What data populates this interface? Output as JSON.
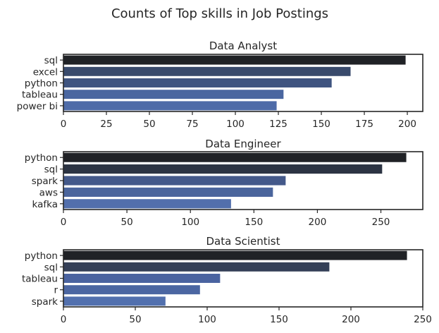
{
  "figure": {
    "title": "Counts of Top skills in Job Postings"
  },
  "chart_data": [
    {
      "type": "bar",
      "orientation": "horizontal",
      "title": "Data Analyst",
      "categories": [
        "sql",
        "excel",
        "python",
        "tableau",
        "power bi"
      ],
      "values": [
        199,
        167,
        156,
        128,
        124
      ],
      "colors": [
        "#202226",
        "#394a6c",
        "#3f5480",
        "#4a66a0",
        "#4e6ba8"
      ],
      "xlim": [
        0,
        209
      ],
      "xticks": [
        0,
        25,
        50,
        75,
        100,
        125,
        150,
        175,
        200
      ],
      "xlabel": "",
      "ylabel": "",
      "grid": false
    },
    {
      "type": "bar",
      "orientation": "horizontal",
      "title": "Data Engineer",
      "categories": [
        "python",
        "sql",
        "spark",
        "aws",
        "kafka"
      ],
      "values": [
        270,
        251,
        175,
        165,
        132
      ],
      "colors": [
        "#202226",
        "#2c3443",
        "#44598a",
        "#4b659c",
        "#526fac"
      ],
      "xlim": [
        0,
        283
      ],
      "xticks": [
        0,
        50,
        100,
        150,
        200,
        250
      ],
      "xlabel": "",
      "ylabel": "",
      "grid": false
    },
    {
      "type": "bar",
      "orientation": "horizontal",
      "title": "Data Scientist",
      "categories": [
        "python",
        "sql",
        "tableau",
        "r",
        "spark"
      ],
      "values": [
        239,
        185,
        109,
        95,
        71
      ],
      "colors": [
        "#202226",
        "#343f57",
        "#4a63a0",
        "#4b66a2",
        "#5270ae"
      ],
      "xlim": [
        0,
        250
      ],
      "xticks": [
        0,
        50,
        100,
        150,
        200,
        250
      ],
      "xlabel": "",
      "ylabel": "",
      "grid": false
    }
  ]
}
